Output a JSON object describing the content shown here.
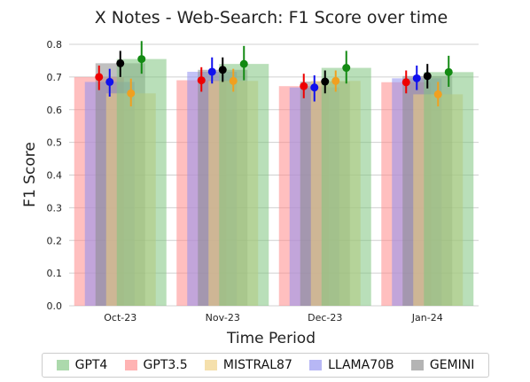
{
  "chart_data": {
    "type": "bar",
    "title": "X Notes - Web-Search: F1 Score over time",
    "xlabel": "Time Period",
    "ylabel": "F1 Score",
    "ylim": [
      0,
      0.8
    ],
    "yticks": [
      "0.0",
      "0.1",
      "0.2",
      "0.3",
      "0.4",
      "0.5",
      "0.6",
      "0.7",
      "0.8"
    ],
    "grid": "horizontal",
    "legend_position": "bottom",
    "categories": [
      "Oct-23",
      "Nov-23",
      "Dec-23",
      "Jan-24"
    ],
    "series": [
      {
        "name": "GPT4",
        "color": "#7fc47f",
        "values": [
          0.755,
          0.74,
          0.728,
          0.715
        ],
        "ci_low": [
          0.71,
          0.69,
          0.68,
          0.67
        ],
        "ci_high": [
          0.81,
          0.795,
          0.78,
          0.765
        ]
      },
      {
        "name": "GPT3.5",
        "color": "#ff8a8a",
        "values": [
          0.7,
          0.69,
          0.672,
          0.684
        ],
        "ci_low": [
          0.66,
          0.655,
          0.635,
          0.65
        ],
        "ci_high": [
          0.735,
          0.73,
          0.71,
          0.72
        ]
      },
      {
        "name": "MISTRAL87",
        "color": "#f0d080",
        "values": [
          0.65,
          0.688,
          0.688,
          0.647
        ],
        "ci_low": [
          0.61,
          0.655,
          0.655,
          0.61
        ],
        "ci_high": [
          0.695,
          0.725,
          0.72,
          0.685
        ]
      },
      {
        "name": "LLAMA70B",
        "color": "#9090f0",
        "values": [
          0.685,
          0.716,
          0.668,
          0.696
        ],
        "ci_low": [
          0.64,
          0.68,
          0.625,
          0.66
        ],
        "ci_high": [
          0.725,
          0.76,
          0.705,
          0.735
        ]
      },
      {
        "name": "GEMINI",
        "color": "#8c8c8c",
        "values": [
          0.742,
          0.722,
          0.686,
          0.703
        ],
        "ci_low": [
          0.7,
          0.685,
          0.65,
          0.665
        ],
        "ci_high": [
          0.78,
          0.76,
          0.72,
          0.74
        ]
      }
    ],
    "point_colors": {
      "GPT4": "#138a13",
      "GPT3.5": "#ee0000",
      "MISTRAL87": "#f0a020",
      "LLAMA70B": "#1010ee",
      "GEMINI": "#000000"
    }
  }
}
